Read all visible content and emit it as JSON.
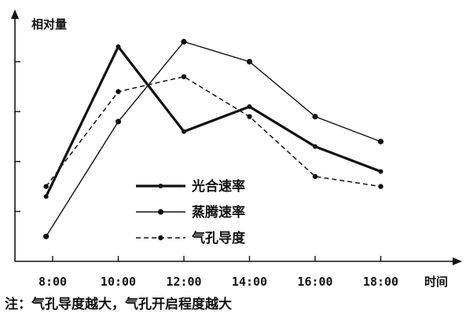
{
  "chart_data": {
    "type": "line",
    "ylabel": "相对量",
    "xlabel": "时间",
    "categories": [
      "8:00",
      "10:00",
      "12:00",
      "14:00",
      "16:00",
      "18:00"
    ],
    "y_ticks_labeled": false,
    "ylim": [
      0,
      5
    ],
    "legend_position": "center-left",
    "grid": false,
    "series": [
      {
        "name": "光合速率",
        "style": "thick-solid",
        "x": [
          7.8,
          10,
          12,
          14,
          16,
          18
        ],
        "values": [
          1.3,
          4.3,
          2.6,
          3.1,
          2.3,
          1.8
        ]
      },
      {
        "name": "蒸腾速率",
        "style": "thin-solid",
        "x": [
          7.8,
          10,
          12,
          14,
          16,
          18
        ],
        "values": [
          0.5,
          2.8,
          4.4,
          4.0,
          2.9,
          2.4
        ]
      },
      {
        "name": "气孔导度",
        "style": "dashed",
        "x": [
          7.8,
          10,
          12,
          14,
          16,
          18
        ],
        "values": [
          1.5,
          3.4,
          3.7,
          2.9,
          1.7,
          1.5
        ]
      }
    ],
    "note": "注：气孔导度越大，气孔开启程度越大"
  }
}
